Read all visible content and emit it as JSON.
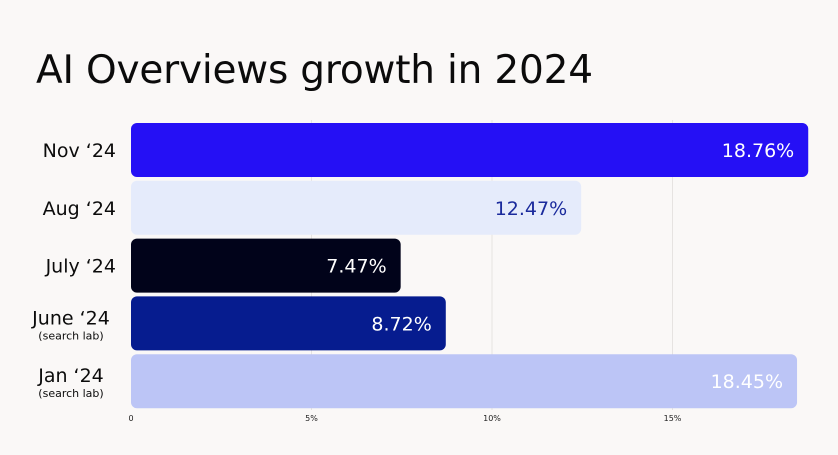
{
  "chart_data": {
    "type": "bar",
    "orientation": "horizontal",
    "title": "AI Overviews growth in 2024",
    "xlabel": "",
    "ylabel": "",
    "xlim": [
      0,
      18.9
    ],
    "grid": true,
    "legend": "none",
    "x_ticks": [
      {
        "value": 0,
        "label": "0"
      },
      {
        "value": 5,
        "label": "5%"
      },
      {
        "value": 10,
        "label": "10%"
      },
      {
        "value": 15,
        "label": "15%"
      }
    ],
    "bars": [
      {
        "label": "Nov ‘24",
        "sublabel": "",
        "value": 18.76,
        "value_label": "18.76%",
        "color": "#2510f5",
        "text_color": "#ffffff"
      },
      {
        "label": "Aug ‘24",
        "sublabel": "",
        "value": 12.47,
        "value_label": "12.47%",
        "color": "#e5ebfb",
        "text_color": "#1a2a9c"
      },
      {
        "label": "July ‘24",
        "sublabel": "",
        "value": 7.47,
        "value_label": "7.47%",
        "color": "#01031a",
        "text_color": "#ffffff"
      },
      {
        "label": "June ‘24",
        "sublabel": "(search lab)",
        "value": 8.72,
        "value_label": "8.72%",
        "color": "#061c8f",
        "text_color": "#ffffff"
      },
      {
        "label": "Jan ‘24",
        "sublabel": "(search lab)",
        "value": 18.45,
        "value_label": "18.45%",
        "color": "#bcc5f6",
        "text_color": "#ffffff"
      }
    ]
  }
}
